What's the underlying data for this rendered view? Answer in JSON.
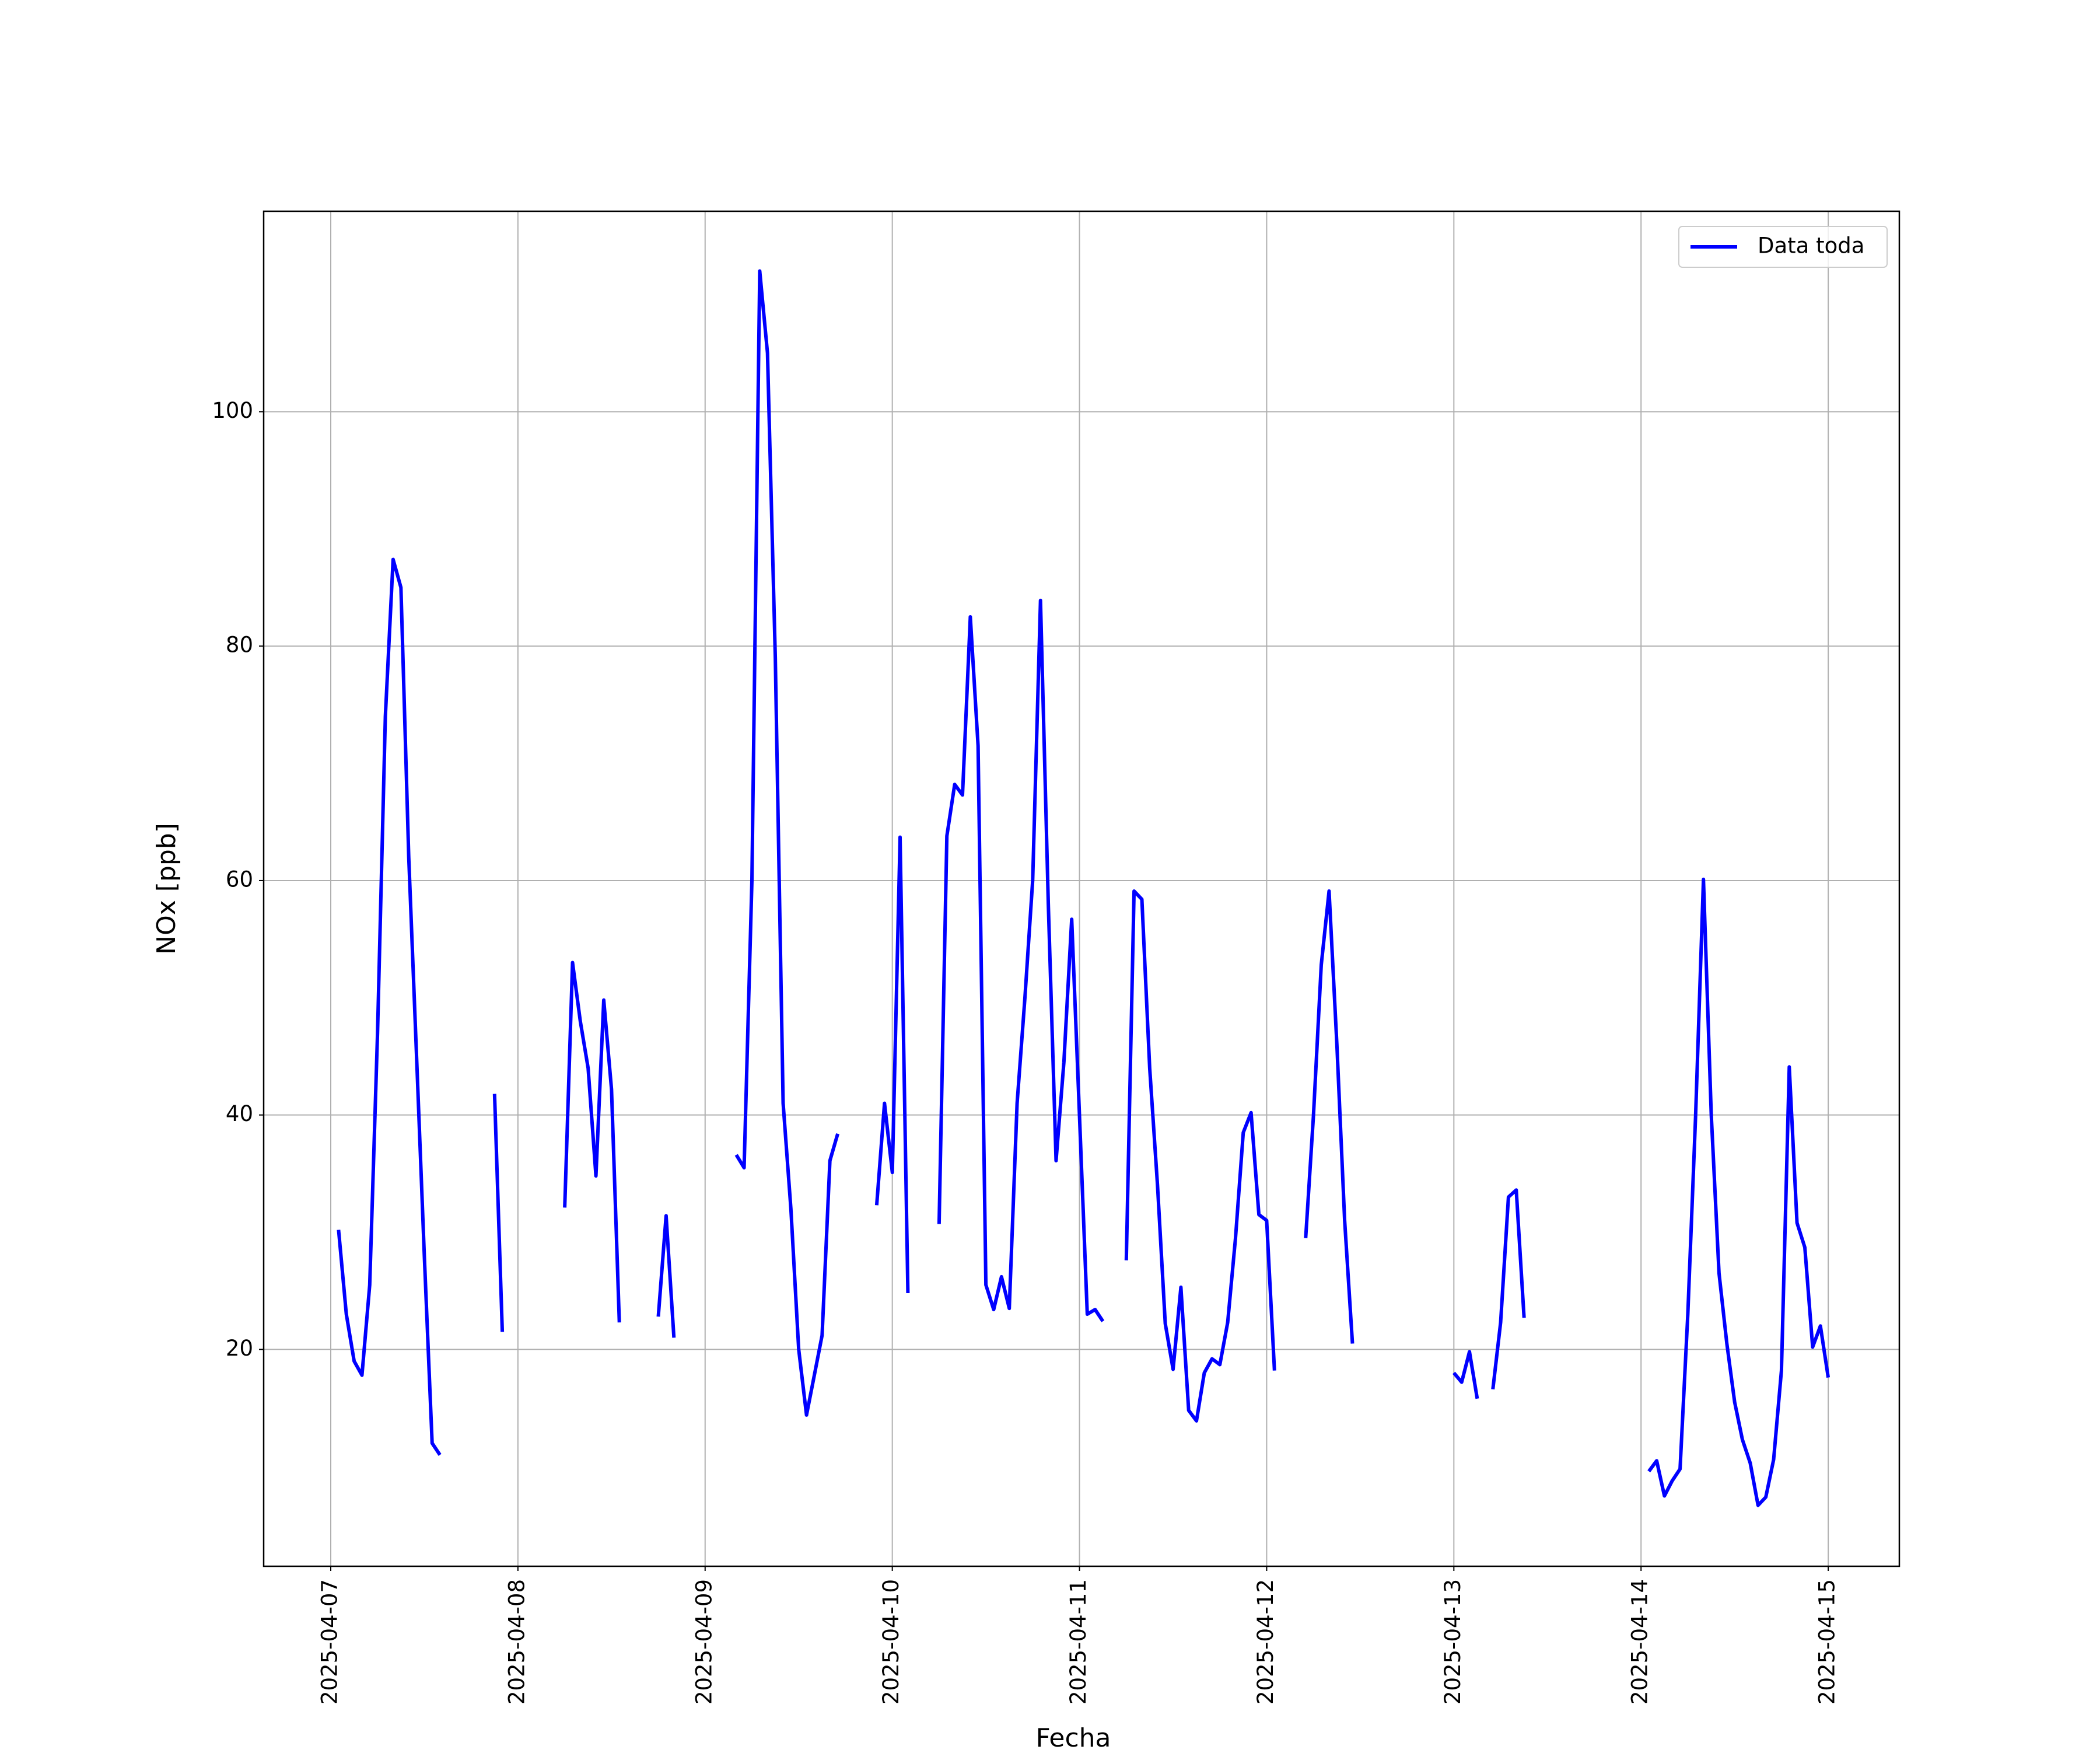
{
  "chart_data": {
    "type": "line",
    "x_label": "Fecha",
    "y_label": "NOx [ppb]",
    "x": [
      "2025-04-07 01:00",
      "2025-04-07 02:00",
      "2025-04-07 03:00",
      "2025-04-07 04:00",
      "2025-04-07 05:00",
      "2025-04-07 06:00",
      "2025-04-07 07:00",
      "2025-04-07 08:00",
      "2025-04-07 09:00",
      "2025-04-07 10:00",
      "2025-04-07 11:00",
      "2025-04-07 12:00",
      "2025-04-07 13:00",
      "2025-04-07 14:00",
      "2025-04-07 15:00",
      "2025-04-07 21:00",
      "2025-04-07 22:00",
      "2025-04-07 23:00",
      "2025-04-08 06:00",
      "2025-04-08 07:00",
      "2025-04-08 08:00",
      "2025-04-08 09:00",
      "2025-04-08 10:00",
      "2025-04-08 11:00",
      "2025-04-08 12:00",
      "2025-04-08 13:00",
      "2025-04-08 14:00",
      "2025-04-08 18:00",
      "2025-04-08 19:00",
      "2025-04-08 20:00",
      "2025-04-08 21:00",
      "2025-04-09 04:00",
      "2025-04-09 05:00",
      "2025-04-09 06:00",
      "2025-04-09 07:00",
      "2025-04-09 08:00",
      "2025-04-09 09:00",
      "2025-04-09 10:00",
      "2025-04-09 11:00",
      "2025-04-09 12:00",
      "2025-04-09 13:00",
      "2025-04-09 14:00",
      "2025-04-09 15:00",
      "2025-04-09 16:00",
      "2025-04-09 17:00",
      "2025-04-09 18:00",
      "2025-04-09 22:00",
      "2025-04-09 23:00",
      "2025-04-10 00:00",
      "2025-04-10 01:00",
      "2025-04-10 02:00",
      "2025-04-10 03:00",
      "2025-04-10 06:00",
      "2025-04-10 07:00",
      "2025-04-10 08:00",
      "2025-04-10 09:00",
      "2025-04-10 10:00",
      "2025-04-10 11:00",
      "2025-04-10 12:00",
      "2025-04-10 13:00",
      "2025-04-10 14:00",
      "2025-04-10 15:00",
      "2025-04-10 16:00",
      "2025-04-10 17:00",
      "2025-04-10 18:00",
      "2025-04-10 19:00",
      "2025-04-10 20:00",
      "2025-04-10 21:00",
      "2025-04-10 22:00",
      "2025-04-10 23:00",
      "2025-04-11 00:00",
      "2025-04-11 01:00",
      "2025-04-11 02:00",
      "2025-04-11 03:00",
      "2025-04-11 04:00",
      "2025-04-11 06:00",
      "2025-04-11 07:00",
      "2025-04-11 08:00",
      "2025-04-11 09:00",
      "2025-04-11 10:00",
      "2025-04-11 11:00",
      "2025-04-11 12:00",
      "2025-04-11 13:00",
      "2025-04-11 14:00",
      "2025-04-11 15:00",
      "2025-04-11 16:00",
      "2025-04-11 17:00",
      "2025-04-11 18:00",
      "2025-04-11 19:00",
      "2025-04-11 20:00",
      "2025-04-11 21:00",
      "2025-04-11 22:00",
      "2025-04-11 23:00",
      "2025-04-12 00:00",
      "2025-04-12 01:00",
      "2025-04-12 02:00",
      "2025-04-12 05:00",
      "2025-04-12 06:00",
      "2025-04-12 07:00",
      "2025-04-12 08:00",
      "2025-04-12 09:00",
      "2025-04-12 10:00",
      "2025-04-12 11:00",
      "2025-04-12 12:00",
      "2025-04-13 00:00",
      "2025-04-13 01:00",
      "2025-04-13 02:00",
      "2025-04-13 03:00",
      "2025-04-13 04:00",
      "2025-04-13 05:00",
      "2025-04-13 06:00",
      "2025-04-13 07:00",
      "2025-04-13 08:00",
      "2025-04-13 09:00",
      "2025-04-13 10:00",
      "2025-04-14 01:00",
      "2025-04-14 02:00",
      "2025-04-14 03:00",
      "2025-04-14 04:00",
      "2025-04-14 05:00",
      "2025-04-14 06:00",
      "2025-04-14 07:00",
      "2025-04-14 08:00",
      "2025-04-14 09:00",
      "2025-04-14 10:00",
      "2025-04-14 11:00",
      "2025-04-14 12:00",
      "2025-04-14 13:00",
      "2025-04-14 14:00",
      "2025-04-14 15:00",
      "2025-04-14 16:00",
      "2025-04-14 17:00",
      "2025-04-14 18:00",
      "2025-04-14 19:00",
      "2025-04-14 20:00",
      "2025-04-14 21:00",
      "2025-04-14 22:00",
      "2025-04-14 23:00",
      "2025-04-15 00:00"
    ],
    "series": [
      {
        "name": "Data toda",
        "color": "#0000ff",
        "values": [
          30.2,
          23,
          19,
          17.8,
          25.5,
          47,
          74,
          87.4,
          85,
          62,
          45,
          28,
          12,
          11,
          null,
          41.8,
          21.5,
          null,
          32.1,
          53,
          48,
          44,
          34.8,
          49.8,
          42.2,
          22.3,
          null,
          22.8,
          31.4,
          21,
          null,
          36.6,
          35.5,
          60,
          112,
          105,
          79,
          41,
          32,
          20,
          14.4,
          17.8,
          21.2,
          36.1,
          38.4,
          null,
          32.3,
          41,
          35.1,
          63.7,
          24.8,
          null,
          30.7,
          63.8,
          68.2,
          67.3,
          82.5,
          71.5,
          25.5,
          23.4,
          26.2,
          23.5,
          41,
          50,
          60,
          83.9,
          58,
          36.1,
          44.5,
          56.7,
          40,
          23,
          23.4,
          22.4,
          null,
          27.6,
          59.1,
          58.4,
          44,
          34,
          22.2,
          18.3,
          25.3,
          14.8,
          13.9,
          18,
          19.2,
          18.7,
          22.3,
          29.5,
          38.5,
          40.2,
          31.5,
          31,
          18.2,
          null,
          29.5,
          40,
          52.8,
          59.1,
          46,
          31,
          20.5,
          null,
          18,
          17.2,
          19.8,
          15.8,
          null,
          16.6,
          22.3,
          33,
          33.6,
          22.7,
          null,
          9.6,
          10.5,
          7.5,
          8.8,
          9.8,
          23,
          40,
          60.1,
          40,
          26.5,
          20.5,
          15.5,
          12.3,
          10.3,
          6.7,
          7.4,
          10.6,
          18.2,
          44.1,
          30.8,
          28.7,
          20.2,
          22,
          17.6
        ]
      }
    ],
    "xlim": [
      "2025-04-06 15:24",
      "2025-04-15 09:07"
    ],
    "xticks": [
      "2025-04-07",
      "2025-04-08",
      "2025-04-09",
      "2025-04-10",
      "2025-04-11",
      "2025-04-12",
      "2025-04-13",
      "2025-04-14",
      "2025-04-15"
    ],
    "ylim": [
      1.5,
      117.1
    ],
    "yticks": [
      20,
      40,
      60,
      80,
      100
    ],
    "grid": true,
    "legend": "upper right"
  }
}
